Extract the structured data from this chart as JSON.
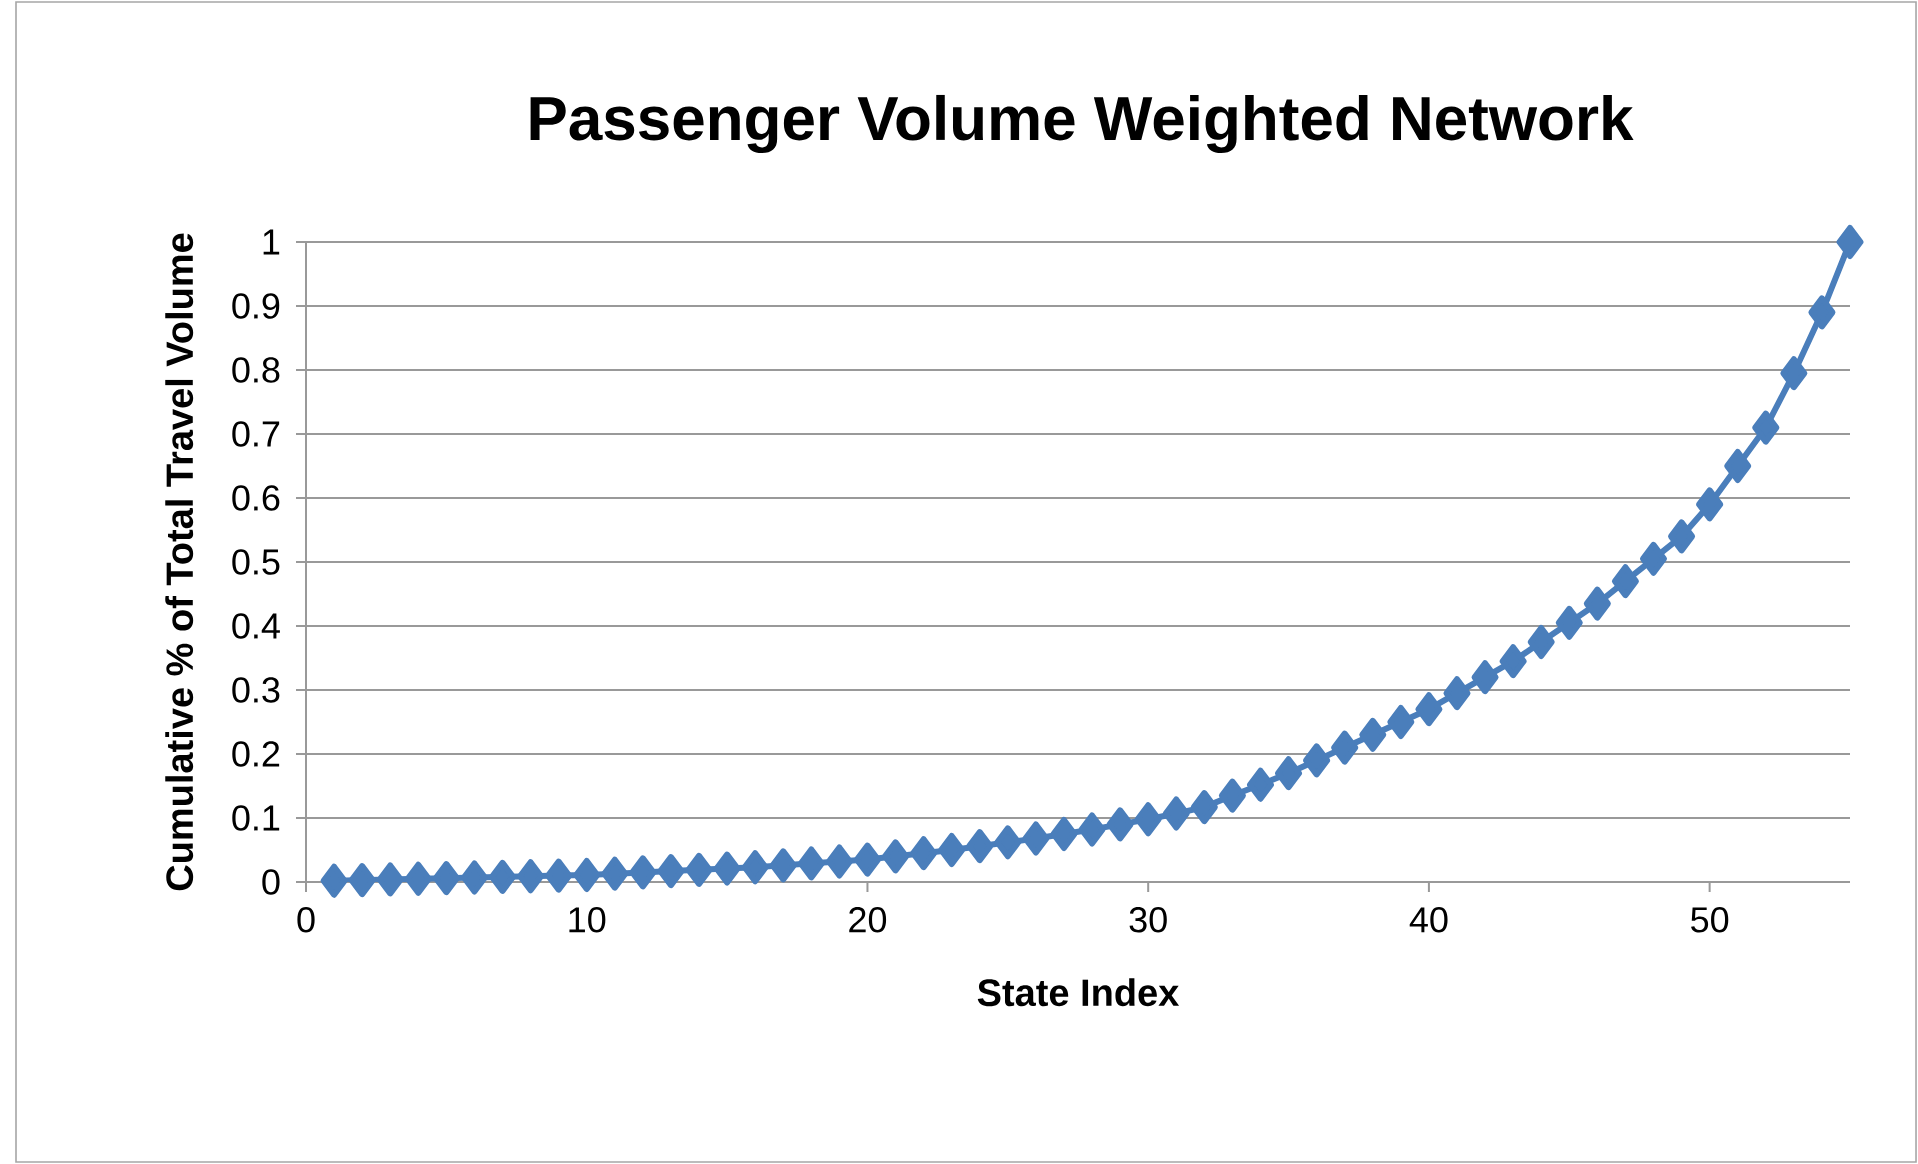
{
  "chart_data": {
    "type": "line",
    "title": "Passenger Volume Weighted Network",
    "xlabel": "State Index",
    "ylabel": "Cumulative % of Total Travel Volume",
    "x": [
      1,
      2,
      3,
      4,
      5,
      6,
      7,
      8,
      9,
      10,
      11,
      12,
      13,
      14,
      15,
      16,
      17,
      18,
      19,
      20,
      21,
      22,
      23,
      24,
      25,
      26,
      27,
      28,
      29,
      30,
      31,
      32,
      33,
      34,
      35,
      36,
      37,
      38,
      39,
      40,
      41,
      42,
      43,
      44,
      45,
      46,
      47,
      48,
      49,
      50,
      51,
      52,
      53,
      54,
      55
    ],
    "series": [
      {
        "color": "#4a7ebb",
        "values": [
          0.002,
          0.003,
          0.004,
          0.005,
          0.006,
          0.007,
          0.008,
          0.009,
          0.01,
          0.011,
          0.013,
          0.015,
          0.017,
          0.019,
          0.021,
          0.023,
          0.026,
          0.029,
          0.032,
          0.035,
          0.04,
          0.045,
          0.05,
          0.056,
          0.062,
          0.068,
          0.075,
          0.082,
          0.09,
          0.098,
          0.107,
          0.117,
          0.135,
          0.152,
          0.17,
          0.19,
          0.21,
          0.23,
          0.25,
          0.27,
          0.295,
          0.32,
          0.345,
          0.375,
          0.405,
          0.435,
          0.47,
          0.505,
          0.54,
          0.59,
          0.65,
          0.71,
          0.795,
          0.89,
          1.0
        ]
      }
    ],
    "xlim": [
      0,
      55
    ],
    "xticks": [
      0,
      10,
      20,
      30,
      40,
      50
    ],
    "ylim": [
      0,
      1
    ],
    "yticks": [
      0,
      0.1,
      0.2,
      0.3,
      0.4,
      0.5,
      0.6,
      0.7,
      0.8,
      0.9,
      1
    ],
    "grid": "y",
    "marker": "diamond",
    "line_style": "solid"
  }
}
